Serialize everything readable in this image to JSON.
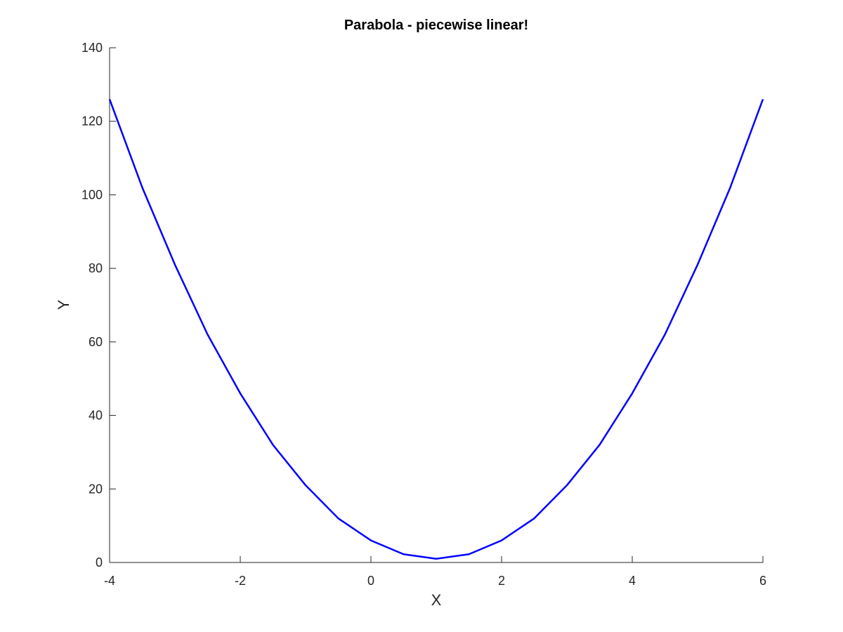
{
  "chart_data": {
    "type": "line",
    "title": "Parabola - piecewise linear!",
    "xlabel": "X",
    "ylabel": "Y",
    "xlim": [
      -4,
      6
    ],
    "ylim": [
      0,
      140
    ],
    "xticks": [
      -4,
      -2,
      0,
      2,
      4,
      6
    ],
    "yticks": [
      0,
      20,
      40,
      60,
      80,
      100,
      120,
      140
    ],
    "xtick_labels": [
      "-4",
      "-2",
      "0",
      "2",
      "4",
      "6"
    ],
    "ytick_labels": [
      "0",
      "20",
      "40",
      "60",
      "80",
      "100",
      "120",
      "140"
    ],
    "grid": false,
    "series": [
      {
        "color": "#0000ff",
        "x": [
          -4,
          -3.5,
          -3,
          -2.5,
          -2,
          -1.5,
          -1,
          -0.5,
          0,
          0.5,
          1,
          1.5,
          2,
          2.5,
          3,
          3.5,
          4,
          4.5,
          5,
          5.5,
          6
        ],
        "y": [
          126,
          102,
          81,
          62,
          46,
          32,
          21,
          12,
          6,
          2.25,
          1,
          2.25,
          6,
          12,
          21,
          32,
          46,
          62,
          81,
          102,
          126
        ]
      }
    ]
  }
}
